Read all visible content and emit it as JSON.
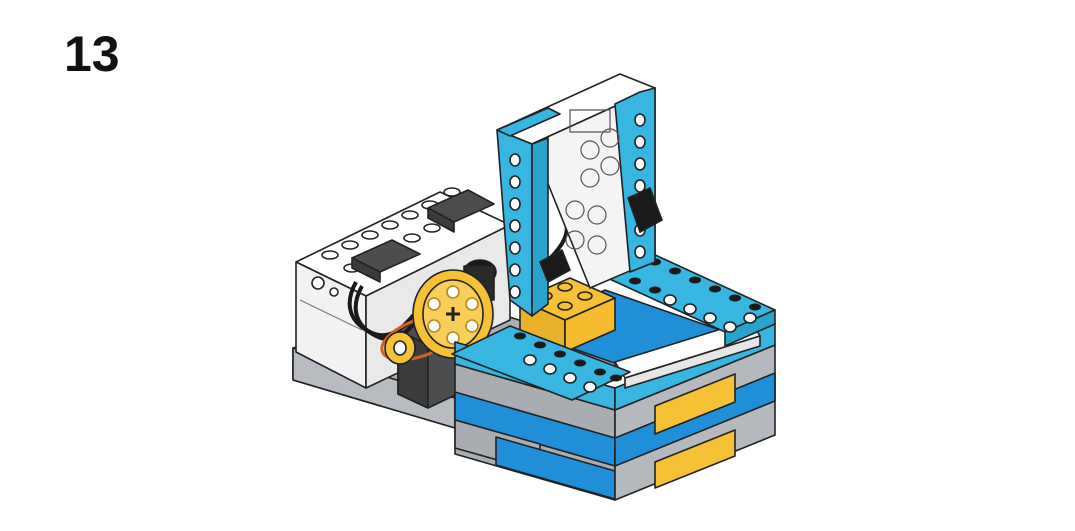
{
  "step": {
    "number": "13"
  },
  "colors": {
    "azure": "#36b6e0",
    "blue": "#1e8fd8",
    "yellow": "#f7c136",
    "grey": "#a9adb1",
    "dark_grey": "#4b4d4e",
    "white": "#ffffff",
    "black": "#1a1a1a",
    "outline": "#222222"
  },
  "illustration": {
    "subject": "building-step-model",
    "parts": [
      "hub-icon",
      "motor-icon",
      "pulley-wheel-icon",
      "belt-icon",
      "cable-icon",
      "beam-frame-icon",
      "box-base-icon"
    ]
  }
}
